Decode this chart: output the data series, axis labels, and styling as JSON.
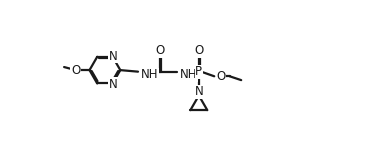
{
  "bg_color": "#ffffff",
  "line_color": "#1a1a1a",
  "line_width": 1.6,
  "font_size": 8.5,
  "fig_width": 3.88,
  "fig_height": 1.48,
  "dpi": 100,
  "xlim": [
    0,
    3.88
  ],
  "ylim": [
    0,
    1.48
  ]
}
